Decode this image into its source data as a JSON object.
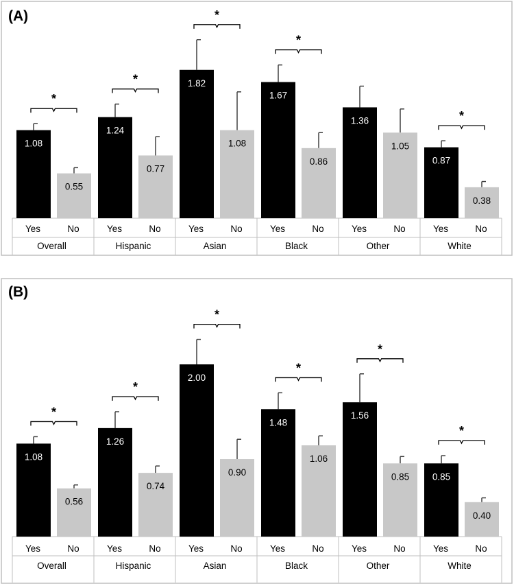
{
  "chart_data": [
    {
      "type": "bar",
      "panel_label": "(A)",
      "groups": [
        "Overall",
        "Hispanic",
        "Asian",
        "Black",
        "Other",
        "White"
      ],
      "subcategories": [
        "Yes",
        "No"
      ],
      "series": [
        {
          "name": "Yes",
          "color": "#000000",
          "label_color": "#ffffff",
          "values": [
            1.08,
            1.24,
            1.82,
            1.67,
            1.36,
            0.87
          ],
          "error_upper": [
            1.16,
            1.4,
            2.19,
            1.88,
            1.62,
            0.95
          ]
        },
        {
          "name": "No",
          "color": "#c8c8c8",
          "label_color": "#000000",
          "values": [
            0.55,
            0.77,
            1.08,
            0.86,
            1.05,
            0.38
          ],
          "error_upper": [
            0.62,
            1.0,
            1.55,
            1.05,
            1.34,
            0.45
          ]
        }
      ],
      "value_labels_yes": [
        "1.08",
        "1.24",
        "1.82",
        "1.67",
        "1.36",
        "0.87"
      ],
      "value_labels_no": [
        "0.55",
        "0.77",
        "1.08",
        "0.86",
        "1.05",
        "0.38"
      ],
      "significance": [
        true,
        true,
        true,
        true,
        false,
        true
      ],
      "significance_marker": "*",
      "ylim": [
        0,
        2.3
      ]
    },
    {
      "type": "bar",
      "panel_label": "(B)",
      "groups": [
        "Overall",
        "Hispanic",
        "Asian",
        "Black",
        "Other",
        "White"
      ],
      "subcategories": [
        "Yes",
        "No"
      ],
      "series": [
        {
          "name": "Yes",
          "color": "#000000",
          "label_color": "#ffffff",
          "values": [
            1.08,
            1.26,
            2.0,
            1.48,
            1.56,
            0.85
          ],
          "error_upper": [
            1.16,
            1.45,
            2.29,
            1.67,
            1.89,
            0.94
          ]
        },
        {
          "name": "No",
          "color": "#c8c8c8",
          "label_color": "#000000",
          "values": [
            0.56,
            0.74,
            0.9,
            1.06,
            0.85,
            0.4
          ],
          "error_upper": [
            0.6,
            0.82,
            1.13,
            1.17,
            0.93,
            0.45
          ]
        }
      ],
      "value_labels_yes": [
        "1.08",
        "1.26",
        "2.00",
        "1.48",
        "1.56",
        "0.85"
      ],
      "value_labels_no": [
        "0.56",
        "0.74",
        "0.90",
        "1.06",
        "0.85",
        "0.40"
      ],
      "significance": [
        true,
        true,
        true,
        true,
        true,
        true
      ],
      "significance_marker": "*",
      "ylim": [
        0,
        2.65
      ]
    }
  ]
}
